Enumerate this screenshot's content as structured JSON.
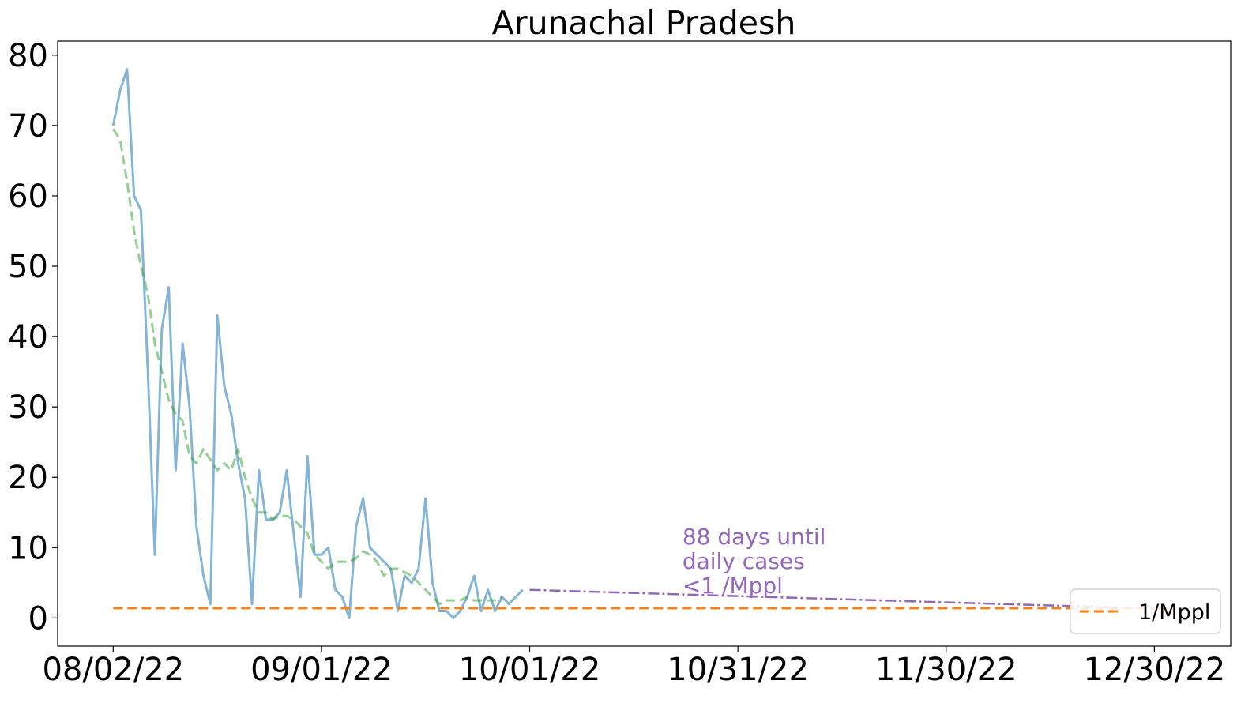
{
  "chart_data": {
    "type": "line",
    "title": "Arunachal Pradesh",
    "xlabel": "",
    "ylabel": "",
    "x_ticks": [
      "08/02/22",
      "09/01/22",
      "10/01/22",
      "10/31/22",
      "11/30/22",
      "12/30/22"
    ],
    "y_ticks": [
      0,
      10,
      20,
      30,
      40,
      50,
      60,
      70,
      80
    ],
    "xlim": [
      "2022-07-25",
      "2023-01-10"
    ],
    "ylim": [
      -4,
      82
    ],
    "grid": false,
    "legend_position": "bottom-right",
    "legend": [
      {
        "label": "1/Mppl",
        "color": "#ff7f0e",
        "style": "dashed"
      }
    ],
    "series": [
      {
        "style": "solid",
        "color": "#1f77b4",
        "start_date": "2022-08-02",
        "values": [
          70,
          75,
          78,
          60,
          58,
          35,
          9,
          41,
          47,
          21,
          39,
          30,
          13,
          6,
          2,
          43,
          33,
          29,
          22,
          17,
          2,
          21,
          14,
          14,
          15,
          21,
          12,
          3,
          23,
          9,
          9,
          10,
          4,
          3,
          0,
          13,
          17,
          10,
          9,
          8,
          7,
          1,
          6,
          5,
          7,
          17,
          5,
          1,
          1,
          0,
          1,
          3,
          6,
          1,
          4,
          1,
          3,
          2,
          3,
          4
        ]
      },
      {
        "style": "dashed",
        "color": "#2ca02c",
        "start_date": "2022-08-02",
        "values": [
          69.5,
          68,
          62,
          55,
          50,
          46,
          39,
          35,
          31,
          29,
          28,
          23,
          22,
          24,
          22.5,
          21,
          22,
          21,
          24,
          20,
          17,
          15,
          15,
          14,
          14.5,
          14.5,
          14,
          13,
          12,
          9,
          8,
          7,
          8,
          8,
          8,
          8.5,
          9.5,
          9,
          8,
          6,
          7,
          7,
          6.5,
          6,
          5,
          4,
          3,
          2,
          2.5,
          2.5,
          2.5,
          3,
          2.5,
          2.5,
          2.5,
          2.5,
          3
        ]
      },
      {
        "style": "dashdot",
        "color": "#9467bd",
        "points": [
          {
            "x": "2022-10-01",
            "y": 4.0
          },
          {
            "x": "2022-12-28",
            "y": 1.4
          }
        ]
      },
      {
        "name": "1/Mppl",
        "style": "dashed",
        "color": "#ff7f0e",
        "points": [
          {
            "x": "2022-08-02",
            "y": 1.4
          },
          {
            "x": "2023-01-02",
            "y": 1.4
          }
        ]
      }
    ],
    "annotation": {
      "lines": [
        "88 days until",
        "daily cases",
        "<1 /Mppl"
      ],
      "color": "#9467bd",
      "anchor": {
        "x": "2022-10-23",
        "y": 3.5
      }
    }
  }
}
